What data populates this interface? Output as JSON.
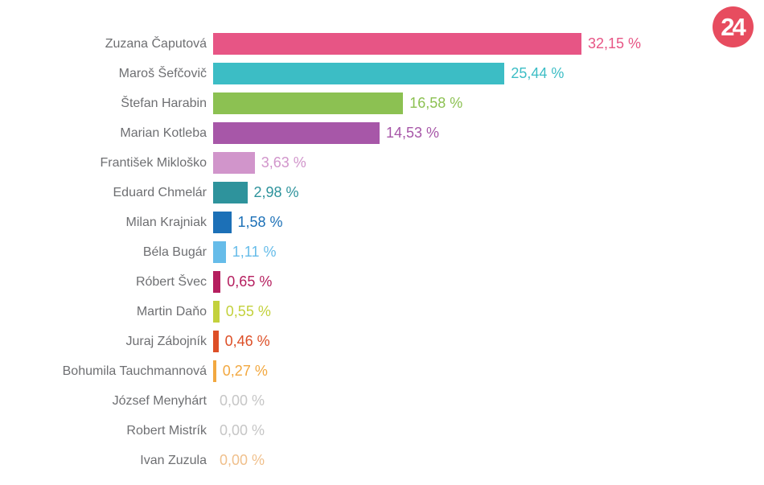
{
  "logo": {
    "text": "24",
    "bg_color": "#e74c5f",
    "text_color": "#ffffff"
  },
  "chart_data": {
    "type": "bar",
    "orientation": "horizontal",
    "title": "",
    "xlabel": "",
    "ylabel": "",
    "xlim": [
      0,
      32.15
    ],
    "grid": false,
    "legend": false,
    "value_format": "comma-decimal percent",
    "categories": [
      "Zuzana Čaputová",
      "Maroš Šefčovič",
      "Štefan Harabin",
      "Marian Kotleba",
      "František Mikloško",
      "Eduard Chmelár",
      "Milan Krajniak",
      "Béla Bugár",
      "Róbert Švec",
      "Martin Daňo",
      "Juraj Zábojník",
      "Bohumila Tauchmannová",
      "József Menyhárt",
      "Robert Mistrík",
      "Ivan Zuzula"
    ],
    "values": [
      32.15,
      25.44,
      16.58,
      14.53,
      3.63,
      2.98,
      1.58,
      1.11,
      0.65,
      0.55,
      0.46,
      0.27,
      0,
      0,
      0
    ],
    "value_labels": [
      "32,15 %",
      "25,44 %",
      "16,58 %",
      "14,53 %",
      "3,63 %",
      "2,98 %",
      "1,58 %",
      "1,11 %",
      "0,65 %",
      "0,55 %",
      "0,46 %",
      "0,27 %",
      "0,00 %",
      "0,00 %",
      "0,00 %"
    ],
    "colors": [
      "#e75585",
      "#3cbdc5",
      "#8cc152",
      "#a757a8",
      "#d195cb",
      "#2e939c",
      "#1c70b7",
      "#66bce9",
      "#b51f5f",
      "#c3d13c",
      "#dd4f27",
      "#f2a840",
      "#c6c6c6",
      "#c6c6c6",
      "#f0c08c"
    ],
    "value_label_colors": [
      "#e75585",
      "#3cbdc5",
      "#8cc152",
      "#a757a8",
      "#d195cb",
      "#2e939c",
      "#1c70b7",
      "#66bce9",
      "#b51f5f",
      "#c3d13c",
      "#dd4f27",
      "#f2a840",
      "#c6c6c6",
      "#c6c6c6",
      "#f0c08c"
    ],
    "name_label_color": "#6e6f72"
  }
}
